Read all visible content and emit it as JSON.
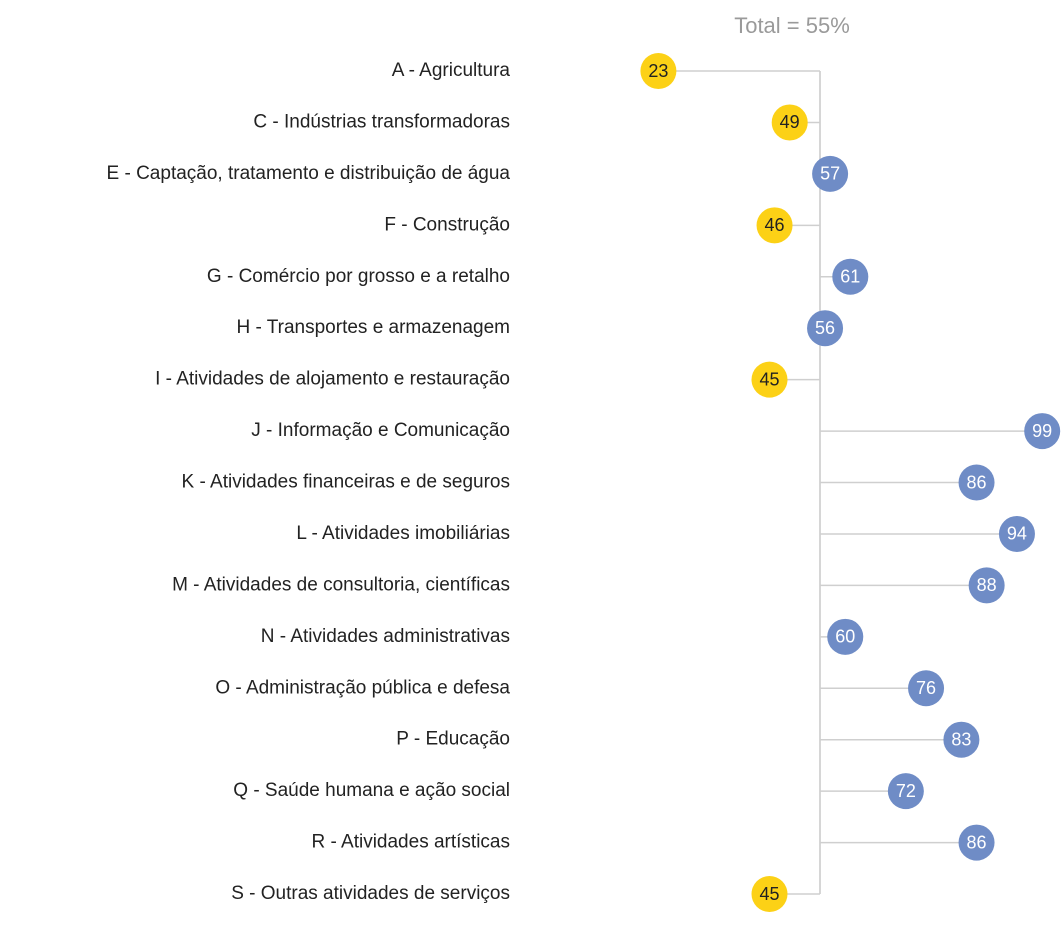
{
  "chart_data": {
    "type": "lollipop",
    "reference": {
      "value": 55,
      "label": "Total = 55%"
    },
    "categories": [
      "A - Agricultura",
      "C - Indústrias transformadoras",
      "E - Captação, tratamento e distribuição de água",
      "F - Construção",
      "G - Comércio por grosso e a retalho",
      "H - Transportes e armazenagem",
      "I - Atividades de alojamento e restauração",
      "J - Informação e Comunicação",
      "K - Atividades financeiras e de seguros",
      "L - Atividades imobiliárias",
      "M - Atividades de consultoria, científicas",
      "N - Atividades administrativas",
      "O - Administração pública e defesa",
      "P - Educação",
      "Q - Saúde humana e ação social",
      "R - Atividades artísticas",
      "S - Outras atividades de serviços"
    ],
    "values": [
      23,
      49,
      57,
      46,
      61,
      56,
      45,
      99,
      86,
      94,
      88,
      60,
      76,
      83,
      72,
      86,
      45
    ],
    "color_below": "#fcd116",
    "color_above": "#6f8cc6"
  }
}
